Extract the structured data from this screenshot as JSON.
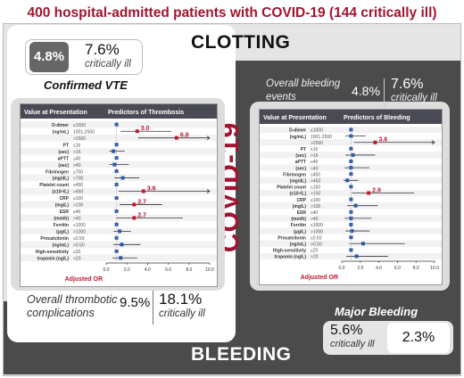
{
  "title": "400 hospital-admitted patients with COVID-19 (144 critically ill)",
  "clotting_label": "CLOTTING",
  "bleeding_label": "BLEEDING",
  "covid_label": "COVID-19",
  "vte": {
    "pct": "4.8%",
    "critical_pct": "7.6%",
    "critical_label": "critically ill",
    "title": "Confirmed VTE"
  },
  "thrombotic": {
    "label_line1": "Overall thrombotic",
    "label_line2": "complications",
    "pct": "9.5%",
    "critical_pct": "18.1%",
    "critical_label": "critically ill"
  },
  "bleeding_overall": {
    "label_line1": "Overall bleeding",
    "label_line2": "events",
    "pct": "4.8%",
    "critical_pct": "7.6%",
    "critical_label": "critically ill"
  },
  "major_bleeding": {
    "title": "Major Bleeding",
    "critical_pct": "5.6%",
    "critical_label": "critically ill",
    "pct": "2.3%"
  },
  "colors": {
    "accent": "#a3142f",
    "header": "#4a4a55",
    "point": "#2b5aa6",
    "highlight": "#c0182f"
  },
  "chart_data": [
    {
      "type": "forest",
      "header_left": "Value at Presentation",
      "header_right": "Predictors of Thrombosis",
      "xlabel": "Adjusted OR",
      "xlim": [
        0,
        10
      ],
      "ticks": [
        "0.0",
        "2.0",
        "4.0",
        "6.0",
        "8.0",
        "10.0"
      ],
      "rows": [
        {
          "param": "D-dimer",
          "cat": "≤1000",
          "or": 1.0,
          "lo": 1.0,
          "hi": 1.0,
          "hl": false
        },
        {
          "param": "(ng/mL)",
          "cat": "1001-2500",
          "or": 3.0,
          "lo": 1.4,
          "hi": 6.3,
          "hl": true,
          "label": "3.0"
        },
        {
          "param": "",
          "cat": ">2500",
          "or": 6.8,
          "lo": 3.1,
          "hi": 10.0,
          "hl": true,
          "label": "6.8"
        },
        {
          "param": "PT",
          "cat": "≤16",
          "or": 1.0,
          "lo": 1.0,
          "hi": 1.0,
          "hl": false
        },
        {
          "param": "(sec)",
          "cat": ">16",
          "or": 0.7,
          "lo": 0.3,
          "hi": 1.8,
          "hl": false
        },
        {
          "param": "aPTT",
          "cat": "≤40",
          "or": 1.0,
          "lo": 1.0,
          "hi": 1.0,
          "hl": false
        },
        {
          "param": "(sec)",
          "cat": ">40",
          "or": 0.8,
          "lo": 0.3,
          "hi": 2.2,
          "hl": false
        },
        {
          "param": "Fibrinogen",
          "cat": "≤700",
          "or": 1.0,
          "lo": 1.0,
          "hi": 1.0,
          "hl": false
        },
        {
          "param": "(mg/dL)",
          "cat": ">700",
          "or": 1.6,
          "lo": 0.8,
          "hi": 3.2,
          "hl": false
        },
        {
          "param": "Platelet count",
          "cat": "≤450",
          "or": 1.0,
          "lo": 1.0,
          "hi": 1.0,
          "hl": false
        },
        {
          "param": "(x10⁹/L)",
          "cat": ">450",
          "or": 3.6,
          "lo": 1.2,
          "hi": 10.0,
          "hl": true,
          "label": "3.6"
        },
        {
          "param": "CRP",
          "cat": "≤100",
          "or": 1.0,
          "lo": 1.0,
          "hi": 1.0,
          "hl": false
        },
        {
          "param": "(mg/L)",
          "cat": ">100",
          "or": 2.7,
          "lo": 1.3,
          "hi": 5.4,
          "hl": true,
          "label": "2.7"
        },
        {
          "param": "ESR",
          "cat": "≤40",
          "or": 1.0,
          "lo": 1.0,
          "hi": 1.0,
          "hl": false
        },
        {
          "param": "(mm/h)",
          "cat": ">40",
          "or": 2.7,
          "lo": 1.0,
          "hi": 7.4,
          "hl": true,
          "label": "2.7"
        },
        {
          "param": "Ferritin",
          "cat": "≤1000",
          "or": 1.0,
          "lo": 1.0,
          "hi": 1.0,
          "hl": false
        },
        {
          "param": "(μg/L)",
          "cat": ">1000",
          "or": 1.3,
          "lo": 0.7,
          "hi": 2.4,
          "hl": false
        },
        {
          "param": "Procalcitonin",
          "cat": "≤0.50",
          "or": 1.0,
          "lo": 1.0,
          "hi": 1.0,
          "hl": false
        },
        {
          "param": "(ng/mL)",
          "cat": ">0.50",
          "or": 1.5,
          "lo": 0.7,
          "hi": 3.3,
          "hl": false
        },
        {
          "param": "High-sensitivity",
          "cat": "≤20",
          "or": 1.0,
          "lo": 1.0,
          "hi": 1.0,
          "hl": false
        },
        {
          "param": "troponin (ng/L)",
          "cat": ">20",
          "or": 1.4,
          "lo": 0.6,
          "hi": 3.0,
          "hl": false
        }
      ]
    },
    {
      "type": "forest",
      "header_left": "Value at Presentation",
      "header_right": "Predictors of Bleeding",
      "xlabel": "Adjusted OR",
      "xlim": [
        0,
        10
      ],
      "ticks": [
        "0.0",
        "2.0",
        "4.0",
        "6.0",
        "8.0",
        "10.0"
      ],
      "rows": [
        {
          "param": "D-dimer",
          "cat": "≤1000",
          "or": 1.0,
          "lo": 1.0,
          "hi": 1.0,
          "hl": false
        },
        {
          "param": "(ng/mL)",
          "cat": "1001-2500",
          "or": 1.0,
          "lo": 0.4,
          "hi": 2.6,
          "hl": false
        },
        {
          "param": "",
          "cat": ">2500",
          "or": 3.6,
          "lo": 1.3,
          "hi": 10.0,
          "hl": true,
          "label": "3.6"
        },
        {
          "param": "PT",
          "cat": "≤16",
          "or": 1.0,
          "lo": 1.0,
          "hi": 1.0,
          "hl": false
        },
        {
          "param": "(sec)",
          "cat": ">16",
          "or": 1.2,
          "lo": 0.4,
          "hi": 3.6,
          "hl": false
        },
        {
          "param": "aPTT",
          "cat": "≤40",
          "or": 1.0,
          "lo": 1.0,
          "hi": 1.0,
          "hl": false
        },
        {
          "param": "(sec)",
          "cat": ">40",
          "or": 1.0,
          "lo": 0.3,
          "hi": 3.0,
          "hl": false
        },
        {
          "param": "Fibrinogen",
          "cat": "≤450",
          "or": 1.0,
          "lo": 1.0,
          "hi": 1.0,
          "hl": false
        },
        {
          "param": "(mg/dL)",
          "cat": ">450",
          "or": 0.6,
          "lo": 0.2,
          "hi": 1.8,
          "hl": false
        },
        {
          "param": "Platelet count",
          "cat": "≤150",
          "or": 1.0,
          "lo": 1.0,
          "hi": 1.0,
          "hl": false
        },
        {
          "param": "(x10⁹/L)",
          "cat": ">150",
          "or": 2.9,
          "lo": 1.1,
          "hi": 7.8,
          "hl": true,
          "label": "2.9"
        },
        {
          "param": "CRP",
          "cat": "≤100",
          "or": 1.0,
          "lo": 1.0,
          "hi": 1.0,
          "hl": false
        },
        {
          "param": "(mg/L)",
          "cat": ">100",
          "or": 1.5,
          "lo": 0.6,
          "hi": 3.9,
          "hl": false
        },
        {
          "param": "ESR",
          "cat": "≤40",
          "or": 1.0,
          "lo": 1.0,
          "hi": 1.0,
          "hl": false
        },
        {
          "param": "(mm/h)",
          "cat": ">40",
          "or": 1.0,
          "lo": 0.3,
          "hi": 3.2,
          "hl": false
        },
        {
          "param": "Ferritin",
          "cat": "≤1000",
          "or": 1.0,
          "lo": 1.0,
          "hi": 1.0,
          "hl": false
        },
        {
          "param": "(μg/L)",
          "cat": ">1000",
          "or": 1.1,
          "lo": 0.4,
          "hi": 3.0,
          "hl": false
        },
        {
          "param": "Procalcitonin",
          "cat": "≤0.50",
          "or": 1.0,
          "lo": 1.0,
          "hi": 1.0,
          "hl": false
        },
        {
          "param": "(ng/mL)",
          "cat": ">0.50",
          "or": 2.3,
          "lo": 0.8,
          "hi": 6.8,
          "hl": false
        },
        {
          "param": "High-sensitivity",
          "cat": "≤20",
          "or": 1.0,
          "lo": 1.0,
          "hi": 1.0,
          "hl": false
        },
        {
          "param": "troponin (ng/L)",
          "cat": ">20",
          "or": 1.6,
          "lo": 0.5,
          "hi": 5.0,
          "hl": false
        }
      ]
    }
  ]
}
